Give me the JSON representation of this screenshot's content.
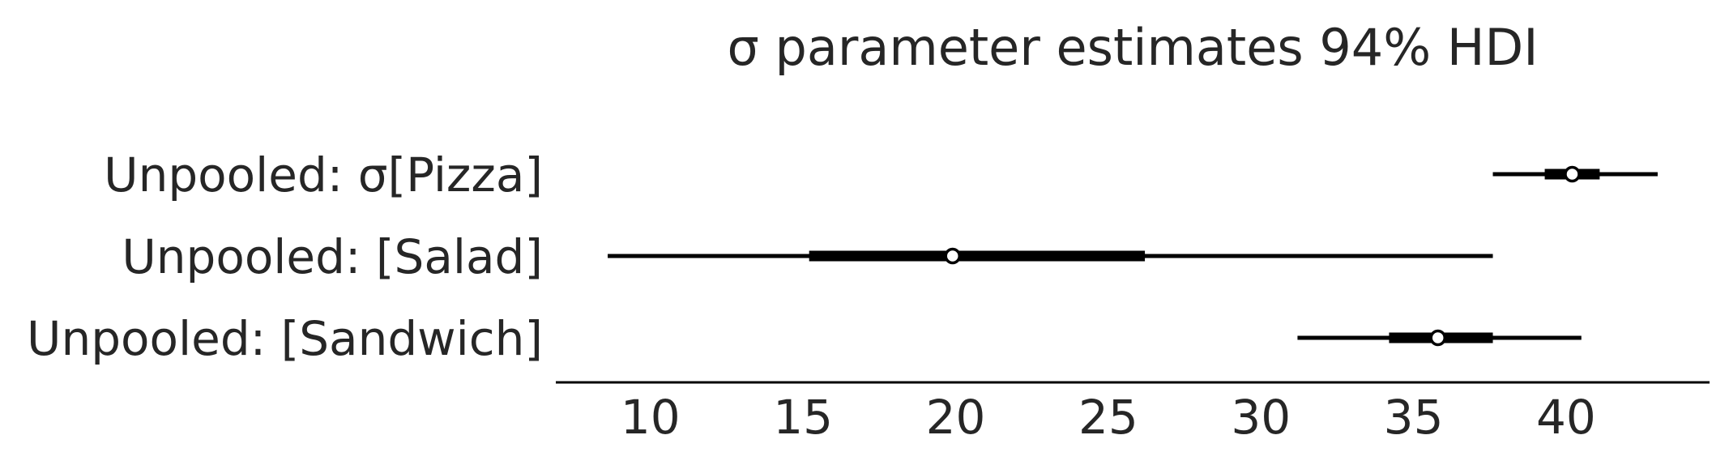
{
  "chart_data": {
    "type": "forest",
    "title": "σ parameter estimates 94% HDI",
    "xlim": [
      6.9,
      44.7
    ],
    "xticks": [
      10,
      15,
      20,
      25,
      30,
      35,
      40
    ],
    "xtick_labels": [
      "10",
      "15",
      "20",
      "25",
      "30",
      "35",
      "40"
    ],
    "grid": false,
    "series": [
      {
        "label": "Unpooled: σ[Pizza]",
        "hdi_94": [
          37.6,
          43.0
        ],
        "iqr": [
          39.3,
          41.1
        ],
        "median": 40.2
      },
      {
        "label": "Unpooled: [Salad]",
        "hdi_94": [
          8.6,
          37.6
        ],
        "iqr": [
          15.2,
          26.2
        ],
        "median": 19.9
      },
      {
        "label": "Unpooled: [Sandwich]",
        "hdi_94": [
          31.2,
          40.5
        ],
        "iqr": [
          34.2,
          37.6
        ],
        "median": 35.8
      }
    ]
  }
}
